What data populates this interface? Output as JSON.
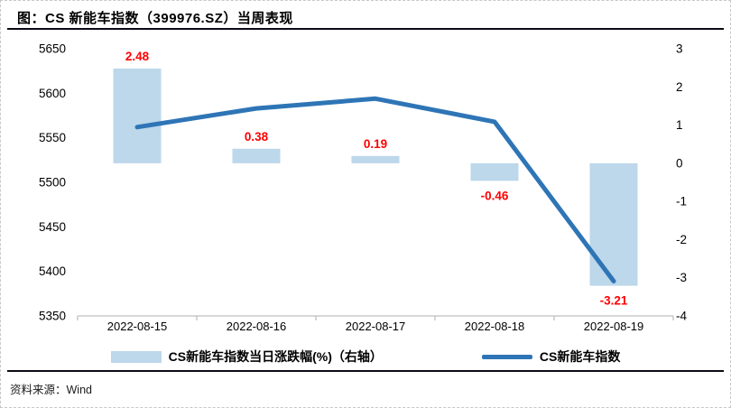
{
  "header": {
    "title": "图：CS 新能车指数（399976.SZ）当周表现"
  },
  "footer": {
    "source": "资料来源：Wind"
  },
  "chart_data": {
    "type": "combo",
    "title": "图：CS 新能车指数（399976.SZ）当周表现",
    "categories": [
      "2022-08-15",
      "2022-08-16",
      "2022-08-17",
      "2022-08-18",
      "2022-08-19"
    ],
    "series": [
      {
        "name": "CS新能车指数当日涨跌幅(%)（右轴）",
        "type": "bar",
        "axis": "right",
        "values": [
          2.48,
          0.38,
          0.19,
          -0.46,
          -3.21
        ],
        "value_labels": [
          "2.48",
          "0.38",
          "0.19",
          "-0.46",
          "-3.21"
        ],
        "color": "#BDD7EB",
        "label_color": "#FF0000"
      },
      {
        "name": "CS新能车指数",
        "type": "line",
        "axis": "left",
        "values": [
          5562,
          5583,
          5594,
          5568,
          5389
        ],
        "color": "#2E75B6"
      }
    ],
    "left_axis": {
      "min": 5350,
      "max": 5650,
      "ticks": [
        "5650",
        "5600",
        "5550",
        "5500",
        "5450",
        "5400",
        "5350"
      ]
    },
    "right_axis": {
      "min": -4,
      "max": 3,
      "ticks": [
        "3",
        "2",
        "1",
        "0",
        "-1",
        "-2",
        "-3",
        "-4"
      ]
    },
    "grid": false,
    "legend_position": "bottom",
    "axis_line_color": "#BFBFBF",
    "text_color": "#000000"
  }
}
